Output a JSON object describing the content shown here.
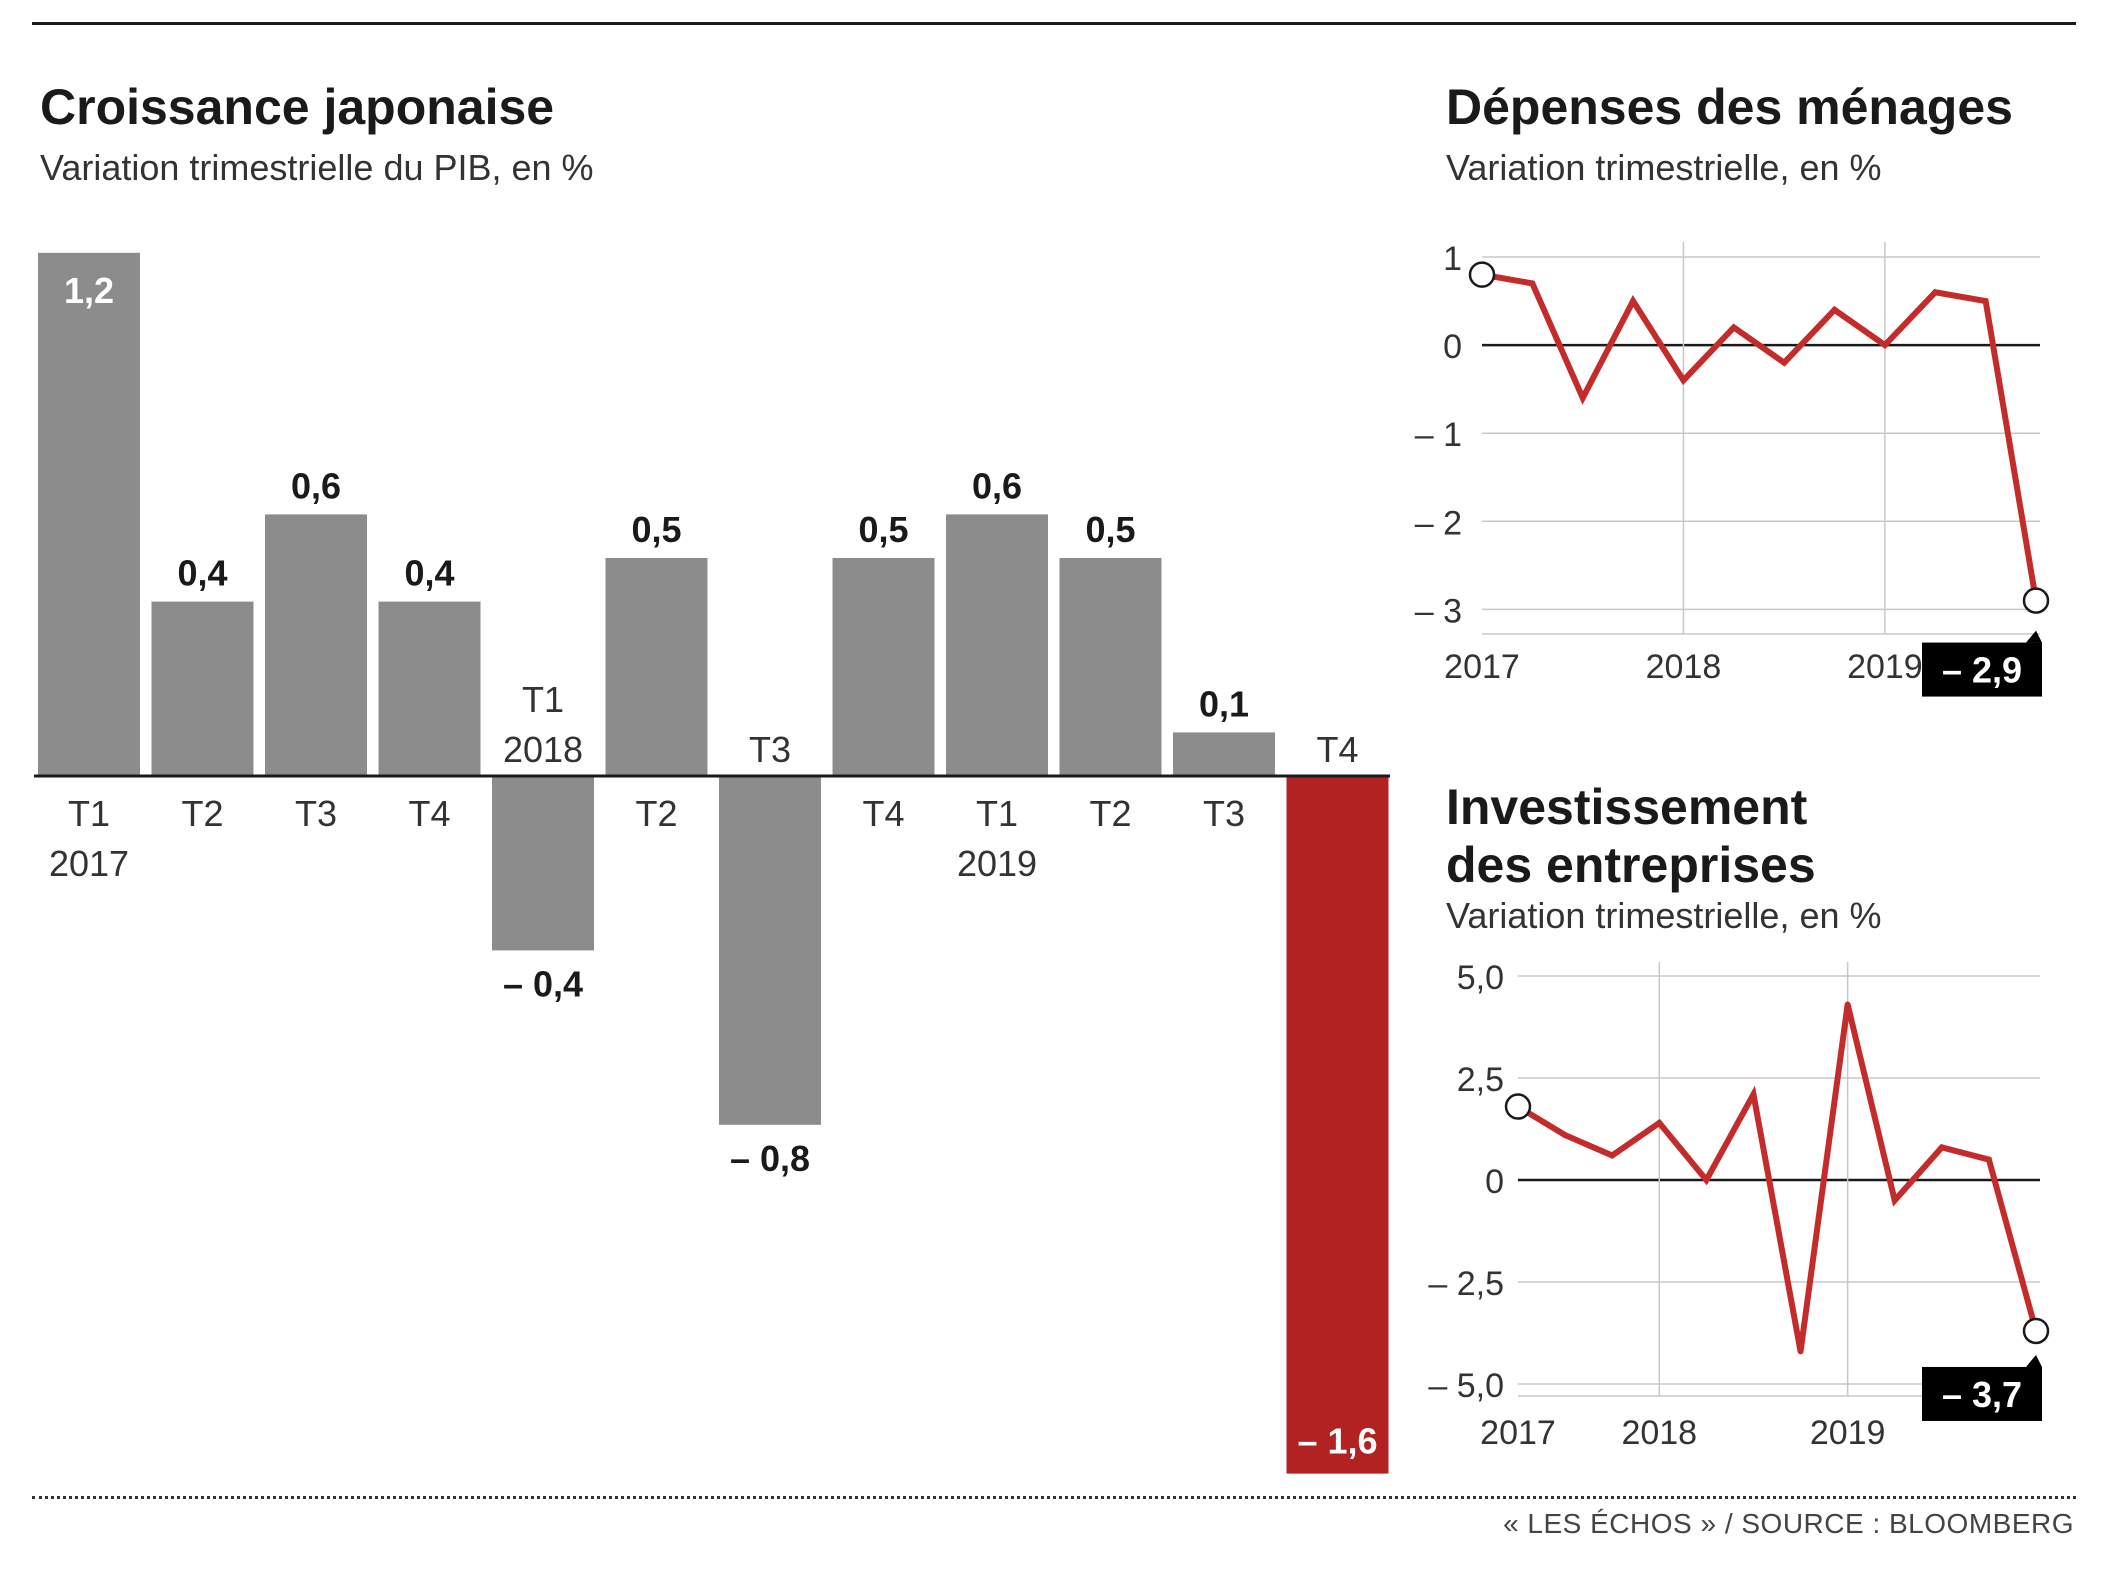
{
  "main_chart": {
    "title": "Croissance japonaise",
    "subtitle": "Variation trimestrielle du PIB, en %"
  },
  "menages_chart": {
    "title": "Dépenses des ménages",
    "subtitle": "Variation trimestrielle, en %"
  },
  "invest_chart": {
    "title_line1": "Investissement",
    "title_line2": "des entreprises",
    "subtitle": "Variation trimestrielle, en %"
  },
  "source": "« LES ÉCHOS » / SOURCE : BLOOMBERG",
  "colors": {
    "bar_grey": "#8c8c8c",
    "bar_highlight": "#b22222",
    "line_red": "#c42b2b",
    "grid": "#c8c8c8",
    "label_box": "#000000"
  },
  "chart_data": [
    {
      "type": "bar",
      "title": "Croissance japonaise",
      "subtitle": "Variation trimestrielle du PIB, en %",
      "categories": [
        "T1 2017",
        "T2",
        "T3",
        "T4",
        "T1 2018",
        "T2",
        "T3",
        "T4",
        "T1 2019",
        "T2",
        "T3",
        "T4"
      ],
      "tick_labels": [
        [
          "T1",
          "2017"
        ],
        [
          "T2"
        ],
        [
          "T3"
        ],
        [
          "T4"
        ],
        [
          "T1",
          "2018"
        ],
        [
          "T2"
        ],
        [
          "T3"
        ],
        [
          "T4"
        ],
        [
          "T1",
          "2019"
        ],
        [
          "T2"
        ],
        [
          "T3"
        ],
        [
          "T4"
        ]
      ],
      "values": [
        1.2,
        0.4,
        0.6,
        0.4,
        -0.4,
        0.5,
        -0.8,
        0.5,
        0.6,
        0.5,
        0.1,
        -1.6
      ],
      "value_labels": [
        "1,2",
        "0,4",
        "0,6",
        "0,4",
        "– 0,4",
        "0,5",
        "– 0,8",
        "0,5",
        "0,6",
        "0,5",
        "0,1",
        "– 1,6"
      ],
      "highlight_index": 11,
      "ylim": [
        -1.6,
        1.2
      ]
    },
    {
      "type": "line",
      "title": "Dépenses des ménages",
      "subtitle": "Variation trimestrielle, en %",
      "values": [
        0.8,
        0.7,
        -0.6,
        0.5,
        -0.4,
        0.2,
        -0.2,
        0.4,
        0.0,
        0.6,
        0.5,
        -2.9
      ],
      "ylim": [
        -3.2,
        1.0
      ],
      "yticks": [
        1,
        0,
        -1,
        -2,
        -3
      ],
      "ytick_labels": [
        "1",
        "0",
        "– 1",
        "– 2",
        "– 3"
      ],
      "x_labels": [
        "2017",
        "2018",
        "2019"
      ],
      "x_label_index": [
        0,
        4,
        8
      ],
      "grid": true,
      "end_label": "– 2,9"
    },
    {
      "type": "line",
      "title": "Investissement des entreprises",
      "subtitle": "Variation trimestrielle, en %",
      "values": [
        1.8,
        1.1,
        0.6,
        1.4,
        0.0,
        2.1,
        -4.2,
        4.3,
        -0.5,
        0.8,
        0.5,
        -3.7
      ],
      "ylim": [
        -5.0,
        5.0
      ],
      "yticks": [
        5.0,
        2.5,
        0,
        -2.5,
        -5.0
      ],
      "ytick_labels": [
        "5,0",
        "2,5",
        "0",
        "– 2,5",
        "– 5,0"
      ],
      "x_labels": [
        "2017",
        "2018",
        "2019"
      ],
      "x_label_index": [
        0,
        3,
        7
      ],
      "grid": true,
      "end_label": "– 3,7"
    }
  ]
}
